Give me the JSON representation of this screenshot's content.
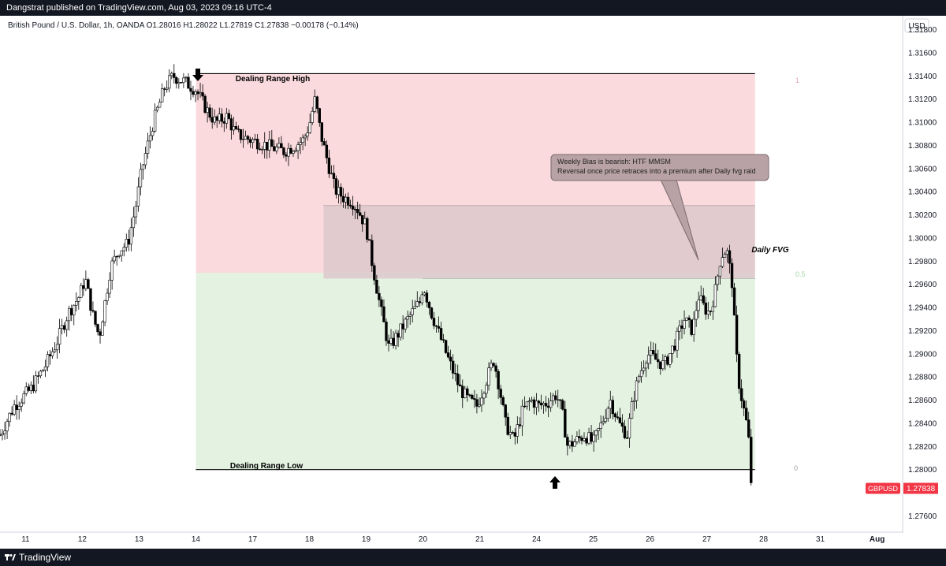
{
  "header": {
    "published": "Dangstrat published on TradingView.com, Aug 03, 2023 09:16 UTC-4",
    "legend": "British Pound / U.S. Dollar, 1h, OANDA  O1.28016  H1.28022  L1.27819  C1.27838  −0.00178 (−0.14%)",
    "currency": "USD"
  },
  "footer": {
    "brand": "TradingView"
  },
  "chart_data": {
    "type": "candlestick",
    "symbol": "GBPUSD",
    "last_price": "1.27838",
    "y_ticks": [
      "1.31800",
      "1.31600",
      "1.31400",
      "1.31200",
      "1.31000",
      "1.30800",
      "1.30600",
      "1.30400",
      "1.30200",
      "1.30000",
      "1.29800",
      "1.29600",
      "1.29400",
      "1.29200",
      "1.29000",
      "1.28800",
      "1.28600",
      "1.28400",
      "1.28200",
      "1.28000",
      "1.27600"
    ],
    "y_tick_values": [
      1.318,
      1.316,
      1.314,
      1.312,
      1.31,
      1.308,
      1.306,
      1.304,
      1.302,
      1.3,
      1.298,
      1.296,
      1.294,
      1.292,
      1.29,
      1.288,
      1.286,
      1.284,
      1.282,
      1.28,
      1.276
    ],
    "ylim": [
      1.2746,
      1.3192
    ],
    "x_ticks": [
      "11",
      "12",
      "13",
      "14",
      "17",
      "18",
      "19",
      "20",
      "21",
      "24",
      "25",
      "26",
      "27",
      "28",
      "31",
      "Aug"
    ],
    "x_tick_pos": [
      0,
      1,
      2,
      3,
      4,
      5,
      6,
      7,
      8,
      9,
      10,
      11,
      12,
      13,
      14,
      15
    ],
    "xlim": [
      -0.45,
      15.45
    ],
    "close_path": [
      [
        -0.45,
        1.283
      ],
      [
        -0.2,
        1.2855
      ],
      [
        0.1,
        1.287
      ],
      [
        0.35,
        1.289
      ],
      [
        0.55,
        1.291
      ],
      [
        0.75,
        1.2935
      ],
      [
        0.95,
        1.295
      ],
      [
        1.05,
        1.2965
      ],
      [
        1.2,
        1.293
      ],
      [
        1.3,
        1.2915
      ],
      [
        1.4,
        1.2945
      ],
      [
        1.5,
        1.2975
      ],
      [
        1.65,
        1.299
      ],
      [
        1.8,
        1.2995
      ],
      [
        1.95,
        1.303
      ],
      [
        2.05,
        1.306
      ],
      [
        2.25,
        1.31
      ],
      [
        2.45,
        1.313
      ],
      [
        2.6,
        1.314
      ],
      [
        2.8,
        1.3135
      ],
      [
        3.0,
        1.3128
      ],
      [
        3.2,
        1.311
      ],
      [
        3.35,
        1.31
      ],
      [
        3.55,
        1.3105
      ],
      [
        3.7,
        1.309
      ],
      [
        3.95,
        1.3085
      ],
      [
        4.15,
        1.3082
      ],
      [
        4.35,
        1.3078
      ],
      [
        4.55,
        1.3075
      ],
      [
        4.75,
        1.308
      ],
      [
        4.9,
        1.3085
      ],
      [
        5.0,
        1.3098
      ],
      [
        5.1,
        1.312
      ],
      [
        5.2,
        1.309
      ],
      [
        5.3,
        1.307
      ],
      [
        5.45,
        1.3042
      ],
      [
        5.6,
        1.3035
      ],
      [
        5.75,
        1.3032
      ],
      [
        5.85,
        1.3025
      ],
      [
        6.0,
        1.301
      ],
      [
        6.1,
        1.298
      ],
      [
        6.25,
        1.294
      ],
      [
        6.4,
        1.2905
      ],
      [
        6.6,
        1.292
      ],
      [
        6.8,
        1.2935
      ],
      [
        6.95,
        1.2945
      ],
      [
        7.0,
        1.296
      ],
      [
        7.15,
        1.2935
      ],
      [
        7.3,
        1.2915
      ],
      [
        7.45,
        1.2895
      ],
      [
        7.65,
        1.287
      ],
      [
        7.8,
        1.286
      ],
      [
        7.95,
        1.2855
      ],
      [
        8.1,
        1.2875
      ],
      [
        8.25,
        1.2895
      ],
      [
        8.35,
        1.287
      ],
      [
        8.45,
        1.284
      ],
      [
        8.6,
        1.2825
      ],
      [
        8.75,
        1.285
      ],
      [
        8.9,
        1.286
      ],
      [
        9.05,
        1.2855
      ],
      [
        9.2,
        1.2858
      ],
      [
        9.35,
        1.2865
      ],
      [
        9.45,
        1.285
      ],
      [
        9.55,
        1.282
      ],
      [
        9.7,
        1.2825
      ],
      [
        9.85,
        1.283
      ],
      [
        10.0,
        1.2823
      ],
      [
        10.15,
        1.284
      ],
      [
        10.3,
        1.286
      ],
      [
        10.45,
        1.284
      ],
      [
        10.6,
        1.283
      ],
      [
        10.7,
        1.286
      ],
      [
        10.8,
        1.288
      ],
      [
        10.95,
        1.29
      ],
      [
        11.1,
        1.2895
      ],
      [
        11.25,
        1.289
      ],
      [
        11.45,
        1.291
      ],
      [
        11.6,
        1.293
      ],
      [
        11.75,
        1.292
      ],
      [
        11.85,
        1.295
      ],
      [
        11.95,
        1.294
      ],
      [
        12.05,
        1.2935
      ],
      [
        12.15,
        1.2955
      ],
      [
        12.25,
        1.2985
      ],
      [
        12.35,
        1.299
      ],
      [
        12.45,
        1.296
      ],
      [
        12.5,
        1.2915
      ],
      [
        12.55,
        1.288
      ],
      [
        12.62,
        1.286
      ],
      [
        12.7,
        1.284
      ],
      [
        12.75,
        1.282
      ],
      [
        12.78,
        1.279
      ]
    ],
    "zones": [
      {
        "type": "premium",
        "top": 1.3142,
        "bottom": 1.297,
        "x_from": 3.0,
        "x_to": 12.85,
        "color": "#fadadd"
      },
      {
        "type": "discount",
        "top": 1.297,
        "bottom": 1.28,
        "x_from": 3.0,
        "x_to": 12.85,
        "color": "#e3f2e1"
      },
      {
        "type": "fvg",
        "top": 1.3028,
        "bottom": 1.2965,
        "x_from": 5.25,
        "x_to": 12.85,
        "color": "#ddc8cc"
      }
    ],
    "levels": [
      {
        "label": "Dealing Range High",
        "value": 1.3142,
        "fib": "1"
      },
      {
        "label": "0.5",
        "value": 1.297,
        "fib": "0.5"
      },
      {
        "label": "Dealing Range Low",
        "value": 1.28,
        "fib": "0"
      }
    ],
    "annotations": {
      "fvg_label": "Daily FVG",
      "callout_line1": "Weekly Bias is bearish: HTF MMSM",
      "callout_line2": "Reversal once price retraces into a premium after Daily fvg raid"
    }
  }
}
